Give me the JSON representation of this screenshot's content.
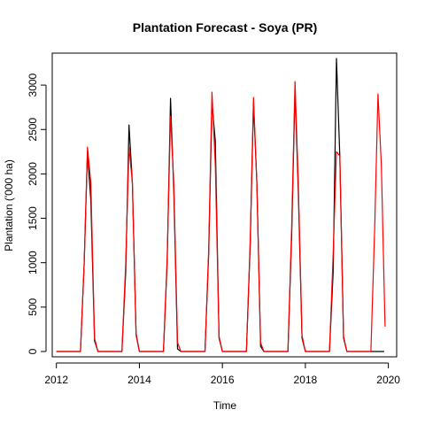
{
  "chart_data": {
    "type": "line",
    "title": "Plantation Forecast - Soya (PR)",
    "xlabel": "Time",
    "ylabel": "Plantation ('000 ha)",
    "xlim": [
      2011.9,
      2020.2
    ],
    "ylim": [
      -60,
      3360
    ],
    "x_ticks": [
      2012,
      2014,
      2016,
      2018,
      2020
    ],
    "y_ticks": [
      0,
      500,
      1000,
      1500,
      2000,
      2500,
      3000
    ],
    "x_tick_labels": [
      "2012",
      "2014",
      "2016",
      "2018",
      "2020"
    ],
    "y_tick_labels": [
      "0",
      "500",
      "1000",
      "1500",
      "2000",
      "2500",
      "3000"
    ],
    "grid": false,
    "legend": "none",
    "colors": {
      "actual": "#000000",
      "fitted": "#ff0000"
    },
    "series": [
      {
        "key": "actual",
        "x": [
          2012.0,
          2012.58,
          2012.67,
          2012.75,
          2012.83,
          2012.92,
          2013.0,
          2013.58,
          2013.67,
          2013.75,
          2013.83,
          2013.92,
          2014.0,
          2014.58,
          2014.67,
          2014.75,
          2014.83,
          2014.92,
          2015.0,
          2015.58,
          2015.67,
          2015.75,
          2015.83,
          2015.92,
          2016.0,
          2016.58,
          2016.67,
          2016.75,
          2016.83,
          2016.92,
          2017.0,
          2017.58,
          2017.67,
          2017.75,
          2017.83,
          2017.92,
          2018.0,
          2018.58,
          2018.67,
          2018.75,
          2018.83,
          2018.92,
          2019.0,
          2019.9
        ],
        "y": [
          0,
          0,
          1000,
          2250,
          1700,
          120,
          0,
          0,
          900,
          2550,
          1900,
          200,
          0,
          0,
          1000,
          2850,
          1800,
          30,
          0,
          0,
          1100,
          2800,
          2370,
          150,
          0,
          0,
          1200,
          2800,
          1900,
          60,
          0,
          0,
          1300,
          2950,
          1800,
          150,
          0,
          0,
          900,
          3300,
          2200,
          150,
          0,
          0
        ]
      },
      {
        "key": "fitted",
        "x": [
          2012.0,
          2012.58,
          2012.67,
          2012.75,
          2012.83,
          2012.92,
          2013.0,
          2013.58,
          2013.67,
          2013.75,
          2013.83,
          2013.92,
          2014.0,
          2014.58,
          2014.67,
          2014.75,
          2014.83,
          2014.92,
          2015.0,
          2015.58,
          2015.67,
          2015.75,
          2015.83,
          2015.92,
          2016.0,
          2016.58,
          2016.67,
          2016.75,
          2016.83,
          2016.92,
          2017.0,
          2017.58,
          2017.67,
          2017.75,
          2017.83,
          2017.92,
          2018.0,
          2018.58,
          2018.67,
          2018.75,
          2018.83,
          2018.92,
          2019.0,
          2019.58,
          2019.67,
          2019.75,
          2019.83,
          2019.92
        ],
        "y": [
          0,
          0,
          1000,
          2300,
          1900,
          150,
          0,
          0,
          1000,
          2300,
          1900,
          180,
          0,
          0,
          1050,
          2650,
          1900,
          100,
          0,
          0,
          1150,
          2920,
          2100,
          170,
          0,
          0,
          1250,
          2860,
          1900,
          100,
          0,
          0,
          1400,
          3040,
          1900,
          180,
          0,
          0,
          1100,
          2250,
          2200,
          170,
          0,
          0,
          1400,
          2900,
          2100,
          280
        ]
      }
    ]
  }
}
